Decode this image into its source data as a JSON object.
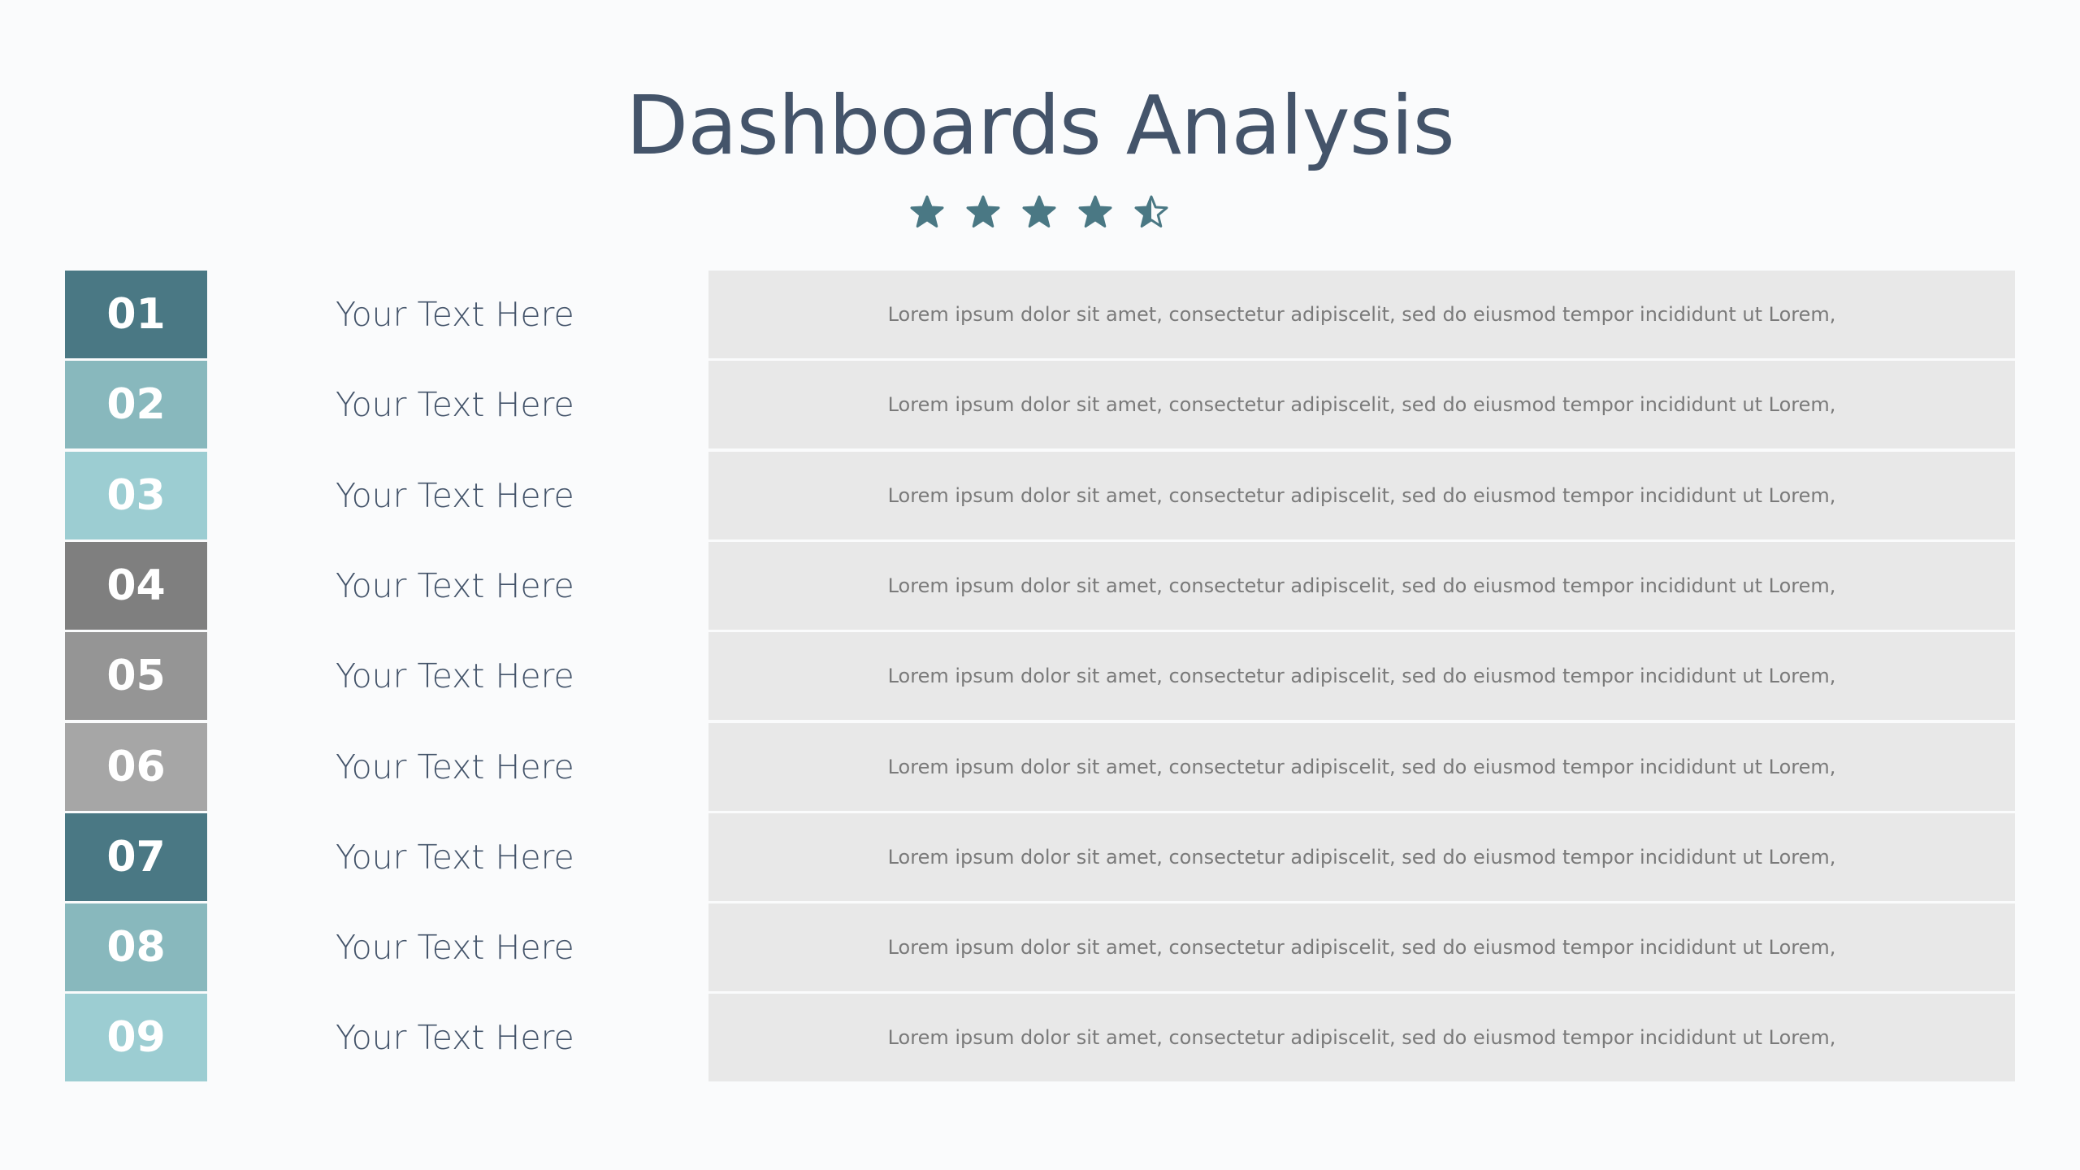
{
  "title": "Dashboards Analysis",
  "rating": {
    "value": 4.5,
    "max": 5,
    "color": "#4a7884",
    "icon": "star-icon"
  },
  "rows": [
    {
      "number": "01",
      "label": "Your Text Here",
      "description": "Lorem ipsum dolor sit amet, consectetur adipiscelit, sed do eiusmod tempor incididunt ut Lorem,",
      "color": "#4a7884"
    },
    {
      "number": "02",
      "label": "Your Text Here",
      "description": "Lorem ipsum dolor sit amet, consectetur adipiscelit, sed do eiusmod tempor incididunt ut Lorem,",
      "color": "#88b8bd"
    },
    {
      "number": "03",
      "label": "Your Text Here",
      "description": "Lorem ipsum dolor sit amet, consectetur adipiscelit, sed do eiusmod tempor incididunt ut Lorem,",
      "color": "#9ccdd2"
    },
    {
      "number": "04",
      "label": "Your Text Here",
      "description": "Lorem ipsum dolor sit amet, consectetur adipiscelit, sed do eiusmod tempor incididunt ut Lorem,",
      "color": "#7f7f7f"
    },
    {
      "number": "05",
      "label": "Your Text Here",
      "description": "Lorem ipsum dolor sit amet, consectetur adipiscelit, sed do eiusmod tempor incididunt ut Lorem,",
      "color": "#959595"
    },
    {
      "number": "06",
      "label": "Your Text Here",
      "description": "Lorem ipsum dolor sit amet, consectetur adipiscelit, sed do eiusmod tempor incididunt ut Lorem,",
      "color": "#a6a6a6"
    },
    {
      "number": "07",
      "label": "Your Text Here",
      "description": "Lorem ipsum dolor sit amet, consectetur adipiscelit, sed do eiusmod tempor incididunt ut Lorem,",
      "color": "#4a7884"
    },
    {
      "number": "08",
      "label": "Your Text Here",
      "description": "Lorem ipsum dolor sit amet, consectetur adipiscelit, sed do eiusmod tempor incididunt ut Lorem,",
      "color": "#88b8bd"
    },
    {
      "number": "09",
      "label": "Your Text Here",
      "description": "Lorem ipsum dolor sit amet, consectetur adipiscelit, sed do eiusmod tempor incididunt ut Lorem,",
      "color": "#9ccdd2"
    }
  ]
}
